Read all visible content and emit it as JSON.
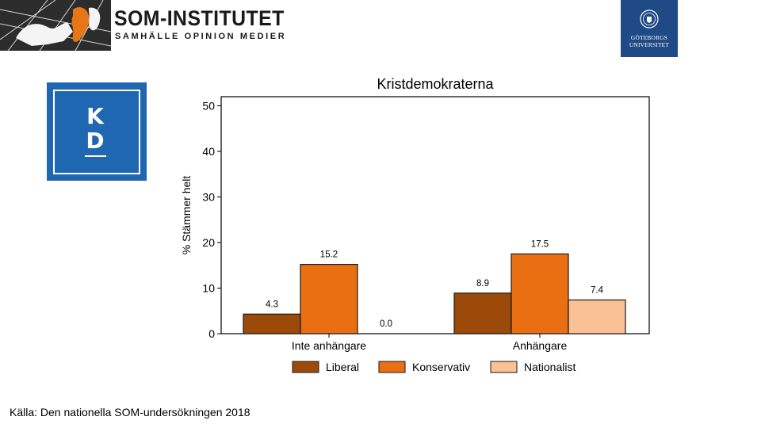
{
  "header": {
    "org_name": "SOM-INSTITUTET",
    "org_tagline": "SAMHÄLLE OPINION MEDIER",
    "university_line1": "GÖTEBORGS",
    "university_line2": "UNIVERSITET"
  },
  "party_logo": {
    "letter1": "K",
    "letter2": "D"
  },
  "source": "Källa: Den nationella SOM-undersökningen  2018",
  "colors": {
    "Liberal": "#9c4a0a",
    "Konservativ": "#ea6f12",
    "Nationalist": "#f9c194",
    "gu_blue": "#1f4a86",
    "kd_blue": "#1f67b0"
  },
  "chart_data": {
    "type": "bar",
    "title": "Kristdemokraterna",
    "xlabel": "",
    "ylabel": "% Stämmer helt",
    "ylim": [
      0,
      52
    ],
    "yticks": [
      0,
      10,
      20,
      30,
      40,
      50
    ],
    "categories": [
      "Inte anhängare",
      "Anhängare"
    ],
    "series": [
      {
        "name": "Liberal",
        "values": [
          4.3,
          8.9
        ],
        "labels": [
          "4.3",
          "8.9"
        ]
      },
      {
        "name": "Konservativ",
        "values": [
          15.2,
          17.5
        ],
        "labels": [
          "15.2",
          "17.5"
        ]
      },
      {
        "name": "Nationalist",
        "values": [
          0.0,
          7.4
        ],
        "labels": [
          "0.0",
          "7.4"
        ]
      }
    ],
    "legend_position": "bottom",
    "grid": false
  }
}
